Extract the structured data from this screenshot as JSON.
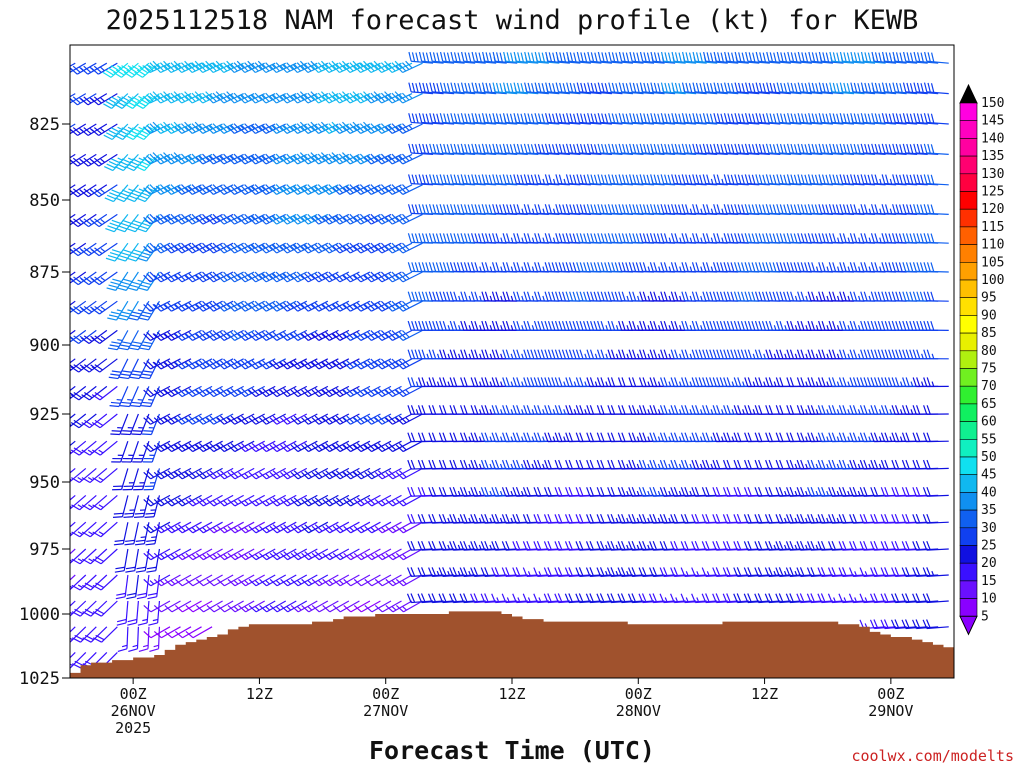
{
  "chart_data": {
    "type": "wind-profile",
    "title": "2025112518 NAM forecast wind profile (kt) for KEWB",
    "xlabel": "Forecast Time (UTC)",
    "ylabel": "",
    "credit": "coolwx.com/modelts",
    "y_axis": {
      "units": "hPa",
      "range": [
        1025,
        800
      ],
      "ticks": [
        825,
        850,
        875,
        900,
        925,
        950,
        975,
        1000,
        1025
      ],
      "tick_labels": [
        "825",
        "850",
        "875",
        "900",
        "925",
        "950",
        "975",
        "1000",
        "1025"
      ]
    },
    "x_axis": {
      "units": "hours since 2025-11-25 18Z",
      "range": [
        0,
        84
      ],
      "ticks": [
        {
          "hour": 6,
          "label1": "00Z",
          "label2": "26NOV",
          "label3": "2025"
        },
        {
          "hour": 18,
          "label1": "12Z",
          "label2": "",
          "label3": ""
        },
        {
          "hour": 30,
          "label1": "00Z",
          "label2": "27NOV",
          "label3": ""
        },
        {
          "hour": 42,
          "label1": "12Z",
          "label2": "",
          "label3": ""
        },
        {
          "hour": 54,
          "label1": "00Z",
          "label2": "28NOV",
          "label3": ""
        },
        {
          "hour": 66,
          "label1": "12Z",
          "label2": "",
          "label3": ""
        },
        {
          "hour": 78,
          "label1": "00Z",
          "label2": "29NOV",
          "label3": ""
        }
      ]
    },
    "colorbar": {
      "units": "kt",
      "levels": [
        5,
        10,
        15,
        20,
        25,
        30,
        35,
        40,
        45,
        50,
        55,
        60,
        65,
        70,
        75,
        80,
        85,
        90,
        95,
        100,
        105,
        110,
        115,
        120,
        125,
        130,
        135,
        140,
        145,
        150
      ],
      "labels": [
        "5",
        "10",
        "15",
        "20",
        "25",
        "30",
        "35",
        "40",
        "45",
        "50",
        "55",
        "60",
        "65",
        "70",
        "75",
        "80",
        "85",
        "90",
        "95",
        "100",
        "105",
        "110",
        "115",
        "120",
        "125",
        "130",
        "135",
        "140",
        "145",
        "150"
      ],
      "colors": [
        "#8a00ff",
        "#6a10ff",
        "#3a10ff",
        "#1010e0",
        "#1040f0",
        "#1060f0",
        "#1090f0",
        "#10b8f0",
        "#10e0f0",
        "#10f0c0",
        "#10f090",
        "#10f060",
        "#30f030",
        "#70f020",
        "#b0f010",
        "#e8f000",
        "#ffff00",
        "#ffe000",
        "#ffc000",
        "#ffa000",
        "#ff8000",
        "#ff6000",
        "#ff3000",
        "#ff0000",
        "#ff0040",
        "#ff0070",
        "#ff00a0",
        "#ff00c0",
        "#ff00e0",
        "#000000"
      ]
    },
    "terrain": {
      "color": "#a0522d",
      "surface_pressure_hpa": [
        {
          "hour": 0,
          "p": 1023
        },
        {
          "hour": 1.5,
          "p": 1019
        },
        {
          "hour": 5,
          "p": 1018
        },
        {
          "hour": 8,
          "p": 1016
        },
        {
          "hour": 10,
          "p": 1012
        },
        {
          "hour": 13,
          "p": 1009
        },
        {
          "hour": 15,
          "p": 1006
        },
        {
          "hour": 17,
          "p": 1004
        },
        {
          "hour": 22,
          "p": 1004
        },
        {
          "hour": 26,
          "p": 1001
        },
        {
          "hour": 30,
          "p": 1000
        },
        {
          "hour": 34,
          "p": 1000
        },
        {
          "hour": 36,
          "p": 999
        },
        {
          "hour": 40,
          "p": 999
        },
        {
          "hour": 42,
          "p": 1001
        },
        {
          "hour": 45,
          "p": 1003
        },
        {
          "hour": 52,
          "p": 1003
        },
        {
          "hour": 54,
          "p": 1004
        },
        {
          "hour": 60,
          "p": 1004
        },
        {
          "hour": 62,
          "p": 1003
        },
        {
          "hour": 72,
          "p": 1003
        },
        {
          "hour": 75,
          "p": 1005
        },
        {
          "hour": 77,
          "p": 1008
        },
        {
          "hour": 80,
          "p": 1010
        },
        {
          "hour": 82,
          "p": 1012
        },
        {
          "hour": 84,
          "p": 1013
        }
      ]
    },
    "wind_field": {
      "levels_hpa": [
        805,
        815,
        825,
        835,
        845,
        855,
        865,
        875,
        885,
        895,
        905,
        915,
        925,
        935,
        945,
        955,
        965,
        975,
        985,
        995,
        1005,
        1015
      ],
      "description": "Hourly barbs; westerly flow strengthening above 850 hPa through day 2, light winds near the surface, jet core near 45-50 kt at 810-850 hPa around hours 6-8 and 29-33",
      "regimes": [
        {
          "hours": [
            0,
            5
          ],
          "dir_upper": 240,
          "dir_lower": 225,
          "speed_upper": 28,
          "speed_lower": 15
        },
        {
          "hours": [
            5,
            9
          ],
          "dir_upper": 230,
          "dir_lower": 180,
          "speed_upper": 48,
          "speed_lower": 12
        },
        {
          "hours": [
            9,
            34
          ],
          "dir_upper": 245,
          "dir_lower": 240,
          "speed_upper": 40,
          "speed_lower": 10
        },
        {
          "hours": [
            34,
            84
          ],
          "dir_upper": 275,
          "dir_lower": 265,
          "speed_upper": 33,
          "speed_lower": 18
        }
      ]
    }
  }
}
